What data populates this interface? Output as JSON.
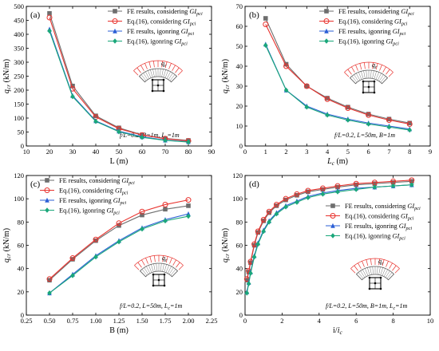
{
  "chart_data": [
    {
      "type": "line",
      "panel_label": "(a)",
      "xlabel": "L (m)",
      "ylabel": "q_cr (kN/m)",
      "xlim": [
        10,
        90
      ],
      "ylim": [
        0,
        500
      ],
      "xticks": [
        10,
        20,
        30,
        40,
        50,
        60,
        70,
        80,
        90
      ],
      "yticks": [
        0,
        50,
        100,
        150,
        200,
        250,
        300,
        350,
        400,
        450,
        500
      ],
      "params": "f/L=0.2, B=1m, L_c=1m",
      "legend_position": "top-right",
      "x": [
        20,
        30,
        40,
        50,
        60,
        70,
        80
      ],
      "series": [
        {
          "name": "FE results, considering GI_pci",
          "values": [
            475,
            215,
            108,
            65,
            40,
            27,
            20
          ]
        },
        {
          "name": "Eq.(16), considering GI_pci",
          "values": [
            460,
            205,
            104,
            62,
            39,
            26,
            18
          ]
        },
        {
          "name": "FE results, igonring GI_pci",
          "values": [
            418,
            180,
            90,
            53,
            33,
            21,
            15
          ]
        },
        {
          "name": "Eq.(16), igonring GI_pci",
          "values": [
            412,
            177,
            88,
            51,
            31,
            20,
            14
          ]
        }
      ]
    },
    {
      "type": "line",
      "panel_label": "(b)",
      "xlabel": "L_c (m)",
      "ylabel": "q_cr (kN/m)",
      "xlim": [
        0,
        9
      ],
      "ylim": [
        0,
        70
      ],
      "xticks": [
        0,
        1,
        2,
        3,
        4,
        5,
        6,
        7,
        8,
        9
      ],
      "yticks": [
        0,
        10,
        20,
        30,
        40,
        50,
        60,
        70
      ],
      "params": "f/L=0.2, L=50m, B=1m",
      "legend_position": "top-right",
      "x": [
        1,
        2,
        3,
        4,
        5,
        6,
        7,
        8
      ],
      "series": [
        {
          "name": "FE results, considering GI_pci",
          "values": [
            64,
            41,
            30,
            24,
            19.5,
            16,
            13.5,
            11.5
          ]
        },
        {
          "name": "Eq.(16), considering GI_pci",
          "values": [
            61,
            40,
            30,
            23.5,
            19,
            15.5,
            13,
            11
          ]
        },
        {
          "name": "FE results, igonring GI_pci",
          "values": [
            51,
            28,
            20,
            16,
            13.5,
            11.5,
            10,
            8.5
          ]
        },
        {
          "name": "Eq.(16), igonring GI_pci",
          "values": [
            50.5,
            28,
            19.5,
            15.5,
            13,
            11,
            9.5,
            8
          ]
        }
      ]
    },
    {
      "type": "line",
      "panel_label": "(c)",
      "xlabel": "B (m)",
      "ylabel": "q_cr (kN/m)",
      "xlim": [
        0.25,
        2.25
      ],
      "ylim": [
        0,
        120
      ],
      "xticks": [
        0.25,
        0.5,
        0.75,
        1.0,
        1.25,
        1.5,
        1.75,
        2.0,
        2.25
      ],
      "xtick_labels": [
        "0.25",
        "0.50",
        "0.75",
        "1.00",
        "1.25",
        "1.50",
        "1.75",
        "2.00",
        "2.25"
      ],
      "yticks": [
        0,
        20,
        40,
        60,
        80,
        100,
        120
      ],
      "params": "f/L=0.2, L=50m, L_c=1m",
      "legend_position": "top-left",
      "x": [
        0.5,
        0.75,
        1.0,
        1.25,
        1.5,
        1.75,
        2.0
      ],
      "series": [
        {
          "name": "FE results, considering GI_pci",
          "values": [
            30,
            48,
            64,
            77,
            86,
            91,
            94
          ]
        },
        {
          "name": "Eq.(16), considering GI_pci",
          "values": [
            31,
            49,
            65,
            79,
            89,
            95,
            99
          ]
        },
        {
          "name": "FE results, igonring GI_pci",
          "values": [
            19,
            35,
            51,
            64,
            75,
            82,
            87
          ]
        },
        {
          "name": "Eq.(16), igonring GI_pci",
          "values": [
            19,
            34,
            50,
            63,
            74,
            81,
            85
          ]
        }
      ]
    },
    {
      "type": "line",
      "panel_label": "(d)",
      "xlabel": "i/i_c",
      "ylabel": "q_cr (kN/m)",
      "xlim": [
        0,
        10
      ],
      "ylim": [
        0,
        120
      ],
      "xticks": [
        0,
        2,
        4,
        6,
        8,
        10
      ],
      "yticks": [
        0,
        20,
        40,
        60,
        80,
        100,
        120
      ],
      "params": "f/L=0.2, L=50m, B=1m, L_c=1m",
      "legend_position": "right",
      "x": [
        0.1,
        0.2,
        0.3,
        0.5,
        0.7,
        1.0,
        1.3,
        1.7,
        2.2,
        2.8,
        3.4,
        4.2,
        5.0,
        6.0,
        7.0,
        8.0,
        9.0
      ],
      "series": [
        {
          "name": "FE results, considering GI_pci",
          "values": [
            30,
            37,
            45,
            60,
            71,
            81,
            88,
            94,
            99,
            103,
            106,
            108,
            110,
            112,
            113,
            114,
            115
          ]
        },
        {
          "name": "Eq.(16), considering GI_pci",
          "values": [
            31,
            38,
            46,
            61,
            72,
            82,
            89,
            95,
            100,
            104,
            107,
            109,
            111,
            113,
            114,
            115,
            116
          ]
        },
        {
          "name": "FE results, igonring GI_pci",
          "values": [
            20,
            28,
            37,
            51,
            62,
            73,
            81,
            88,
            94,
            98,
            102,
            105,
            107,
            109,
            110,
            111,
            112
          ]
        },
        {
          "name": "Eq.(16), igonring GI_pci",
          "values": [
            19,
            27,
            36,
            50,
            61,
            72,
            80,
            87,
            93,
            97,
            101,
            104,
            106,
            108,
            110,
            111,
            112
          ]
        }
      ]
    }
  ],
  "styles": {
    "series_colors": [
      "#6e6e6e",
      "#e8322d",
      "#2b5fd6",
      "#1aa77a"
    ],
    "series_markers": [
      "square",
      "circle",
      "triangle",
      "diamond"
    ]
  },
  "inset": {
    "q_label": "q_r"
  }
}
